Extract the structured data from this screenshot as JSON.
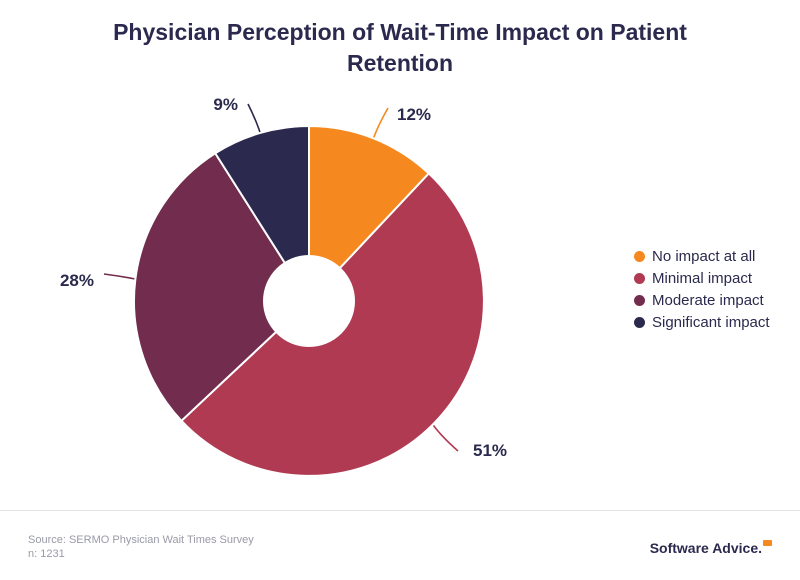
{
  "colors": {
    "title": "#2b2a4e",
    "orange": "#f5891f",
    "crimson": "#b03a52",
    "plum": "#722c4e",
    "navy": "#2b2a4e"
  },
  "chart_data": {
    "type": "pie",
    "title": "Physician Perception of Wait-Time Impact on Patient Retention",
    "donut": true,
    "legend_position": "right",
    "slices": [
      {
        "label": "No impact at all",
        "value": 12,
        "display": "12%",
        "color": "#f5891f"
      },
      {
        "label": "Minimal impact",
        "value": 51,
        "display": "51%",
        "color": "#b03a52"
      },
      {
        "label": "Moderate impact",
        "value": 28,
        "display": "28%",
        "color": "#722c4e"
      },
      {
        "label": "Significant impact",
        "value": 9,
        "display": "9%",
        "color": "#2b2a4e"
      }
    ]
  },
  "footer": {
    "source": "Source: SERMO Physician Wait Times Survey",
    "sample": "n: 1231",
    "brand": "Software Advice."
  }
}
